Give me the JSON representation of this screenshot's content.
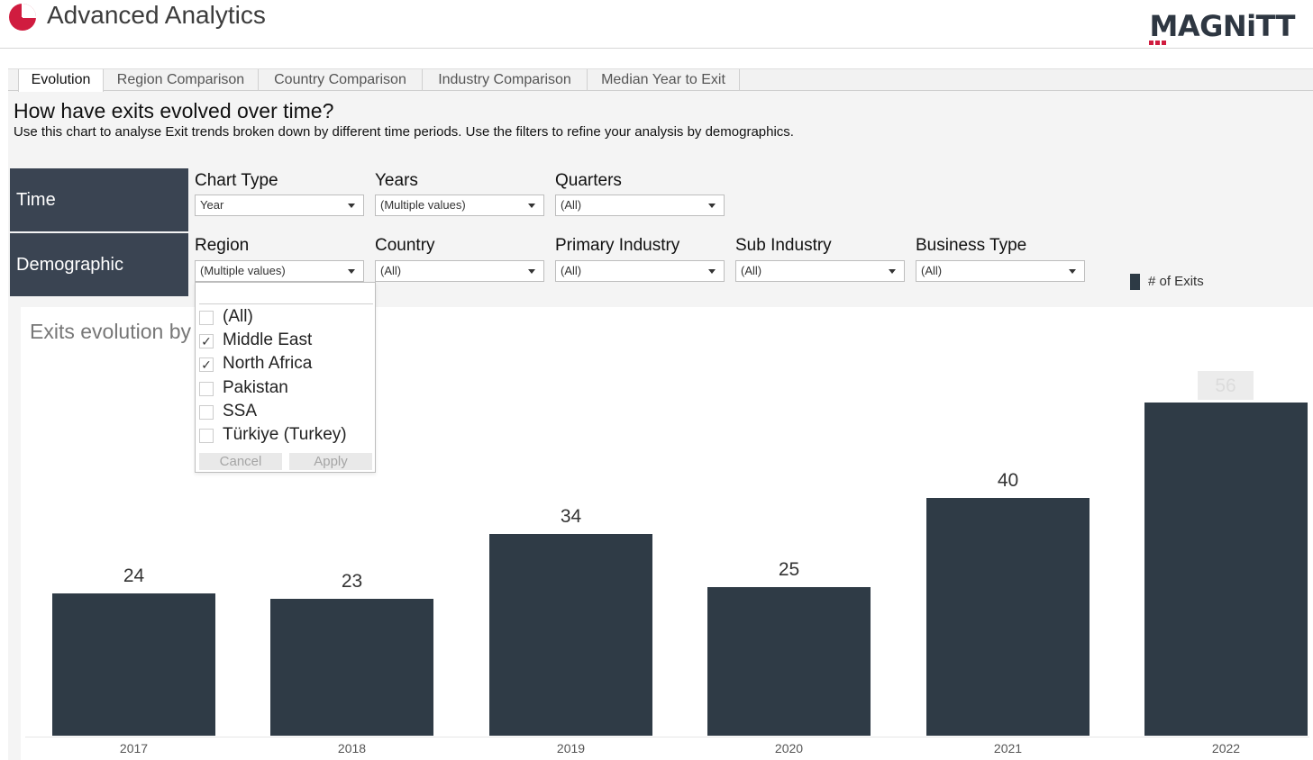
{
  "app": {
    "title": "Advanced Analytics",
    "brand": "MAGNiTT"
  },
  "tabs": [
    {
      "label": "Evolution",
      "active": true
    },
    {
      "label": "Region Comparison"
    },
    {
      "label": "Country Comparison"
    },
    {
      "label": "Industry Comparison"
    },
    {
      "label": "Median Year to Exit"
    }
  ],
  "main": {
    "heading": "How have exits evolved over time?",
    "description": "Use this chart to analyse Exit trends broken down by different time periods. Use the filters to refine your analysis by demographics."
  },
  "filters": {
    "time_label": "Time",
    "demographic_label": "Demographic",
    "chart_type": {
      "label": "Chart Type",
      "value": "Year"
    },
    "years": {
      "label": "Years",
      "value": "(Multiple values)"
    },
    "quarters": {
      "label": "Quarters",
      "value": "(All)"
    },
    "region": {
      "label": "Region",
      "value": "(Multiple values)"
    },
    "country": {
      "label": "Country",
      "value": "(All)"
    },
    "primary_industry": {
      "label": "Primary Industry",
      "value": "(All)"
    },
    "sub_industry": {
      "label": "Sub Industry",
      "value": "(All)"
    },
    "business_type": {
      "label": "Business Type",
      "value": "(All)"
    }
  },
  "region_popup": {
    "items": [
      {
        "label": "(All)",
        "checked": false
      },
      {
        "label": "Middle East",
        "checked": true
      },
      {
        "label": "North Africa",
        "checked": true
      },
      {
        "label": "Pakistan",
        "checked": false
      },
      {
        "label": "SSA",
        "checked": false
      },
      {
        "label": "Türkiye (Turkey)",
        "checked": false
      }
    ],
    "cancel_label": "Cancel",
    "apply_label": "Apply"
  },
  "colors": {
    "bar": "#2f3b46",
    "panel": "#3a4452",
    "accent": "#d01c3f"
  },
  "chart_data": {
    "type": "bar",
    "title": "Exits evolution by",
    "categories": [
      "2017",
      "2018",
      "2019",
      "2020",
      "2021",
      "2022"
    ],
    "series": [
      {
        "name": "# of Exits",
        "values": [
          24,
          23,
          34,
          25,
          40,
          56
        ]
      }
    ],
    "data_labels": [
      "24",
      "23",
      "34",
      "25",
      "40",
      "56"
    ],
    "ylim": [
      0,
      60
    ],
    "grid": false,
    "legend": "top-right"
  }
}
